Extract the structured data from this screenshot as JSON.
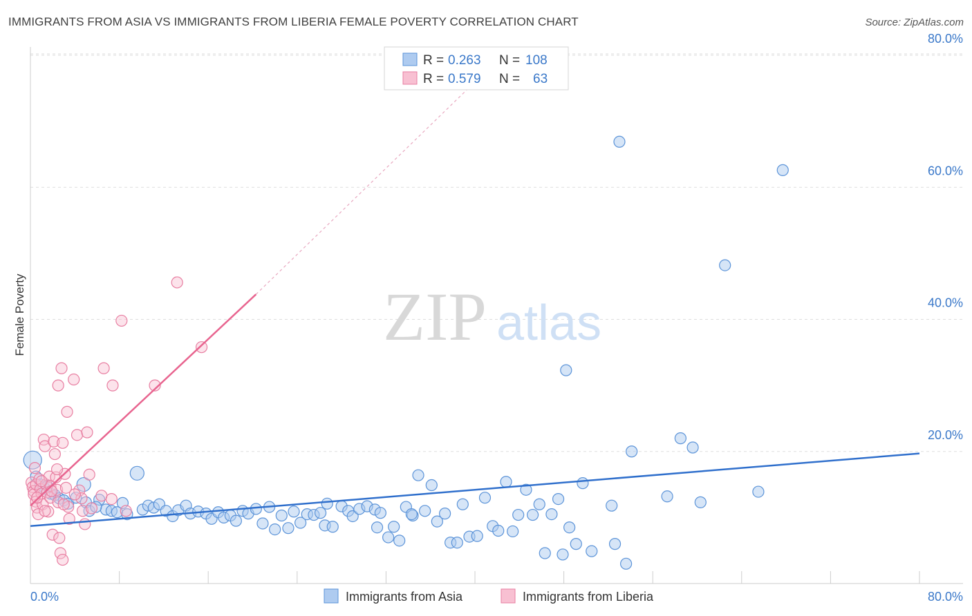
{
  "title": "IMMIGRANTS FROM ASIA VS IMMIGRANTS FROM LIBERIA FEMALE POVERTY CORRELATION CHART",
  "source": "Source: ZipAtlas.com",
  "watermark": {
    "zip": "ZIP",
    "atlas": "atlas"
  },
  "colors": {
    "asia_fill": "#aecbf0",
    "asia_stroke": "#5b93d8",
    "asia_line": "#2f6fcc",
    "liberia_fill": "#f8c0d2",
    "liberia_stroke": "#e87ea1",
    "liberia_line": "#e8648f",
    "grid": "#dddddd",
    "tick_label": "#3a78c9"
  },
  "legend": {
    "rows": [
      {
        "r_label": "R =",
        "r_value": "0.263",
        "n_label": "N =",
        "n_value": "108"
      },
      {
        "r_label": "R =",
        "r_value": "0.579",
        "n_label": "N =",
        "n_value": "63"
      }
    ]
  },
  "chart_data": {
    "type": "scatter",
    "title": "IMMIGRANTS FROM ASIA VS IMMIGRANTS FROM LIBERIA FEMALE POVERTY CORRELATION CHART",
    "xlabel": "",
    "ylabel": "Female Poverty",
    "xlim": [
      0,
      80
    ],
    "ylim": [
      0,
      80
    ],
    "x_tick_labels": [
      "0.0%",
      "80.0%"
    ],
    "y_tick_labels": [
      "20.0%",
      "40.0%",
      "60.0%",
      "80.0%"
    ],
    "y_ticks": [
      20,
      40,
      60,
      80
    ],
    "grid": true,
    "legend_position": "top-center",
    "series": [
      {
        "name": "Immigrants from Asia",
        "R": 0.263,
        "N": 108,
        "trend": {
          "x0": 0,
          "y0": 8.7,
          "x1": 80,
          "y1": 19.7
        },
        "points": [
          [
            0.2,
            18.7
          ],
          [
            0.5,
            16.2
          ],
          [
            0.9,
            15.0
          ],
          [
            1.2,
            14.6
          ],
          [
            1.5,
            14.8
          ],
          [
            1.8,
            13.6
          ],
          [
            2.2,
            13.4
          ],
          [
            2.6,
            12.9
          ],
          [
            3.0,
            12.6
          ],
          [
            3.4,
            12.1
          ],
          [
            4.1,
            13.0
          ],
          [
            4.8,
            15.0
          ],
          [
            5.0,
            12.3
          ],
          [
            5.3,
            11.0
          ],
          [
            6.2,
            12.7
          ],
          [
            6.8,
            11.2
          ],
          [
            7.3,
            11.0
          ],
          [
            7.8,
            10.8
          ],
          [
            8.3,
            12.2
          ],
          [
            8.7,
            10.5
          ],
          [
            9.6,
            16.7
          ],
          [
            10.1,
            11.2
          ],
          [
            10.6,
            11.8
          ],
          [
            11.1,
            11.5
          ],
          [
            11.6,
            12.0
          ],
          [
            12.2,
            11.0
          ],
          [
            12.8,
            10.2
          ],
          [
            13.3,
            11.1
          ],
          [
            14.0,
            11.8
          ],
          [
            14.4,
            10.6
          ],
          [
            15.1,
            10.9
          ],
          [
            15.8,
            10.6
          ],
          [
            16.3,
            9.8
          ],
          [
            16.9,
            10.8
          ],
          [
            17.4,
            10.0
          ],
          [
            18.0,
            10.3
          ],
          [
            18.5,
            9.5
          ],
          [
            19.1,
            11.0
          ],
          [
            19.6,
            10.6
          ],
          [
            20.3,
            11.3
          ],
          [
            20.9,
            9.1
          ],
          [
            21.5,
            11.6
          ],
          [
            22.0,
            8.2
          ],
          [
            22.6,
            10.3
          ],
          [
            23.2,
            8.4
          ],
          [
            23.7,
            10.9
          ],
          [
            24.3,
            9.2
          ],
          [
            24.9,
            10.5
          ],
          [
            25.5,
            10.4
          ],
          [
            26.1,
            10.7
          ],
          [
            26.5,
            8.8
          ],
          [
            27.2,
            8.6
          ],
          [
            28.0,
            11.7
          ],
          [
            28.6,
            11.0
          ],
          [
            29.0,
            10.2
          ],
          [
            29.6,
            11.3
          ],
          [
            30.3,
            11.7
          ],
          [
            31.0,
            11.2
          ],
          [
            31.5,
            10.7
          ],
          [
            31.2,
            8.5
          ],
          [
            32.2,
            7.0
          ],
          [
            32.7,
            8.6
          ],
          [
            33.2,
            6.5
          ],
          [
            33.8,
            11.6
          ],
          [
            34.4,
            10.3
          ],
          [
            34.9,
            16.4
          ],
          [
            35.5,
            11.0
          ],
          [
            36.1,
            14.9
          ],
          [
            36.6,
            9.4
          ],
          [
            37.3,
            10.6
          ],
          [
            37.8,
            6.2
          ],
          [
            38.4,
            6.2
          ],
          [
            38.9,
            12.0
          ],
          [
            39.5,
            7.1
          ],
          [
            40.2,
            7.2
          ],
          [
            40.9,
            13.0
          ],
          [
            41.6,
            8.7
          ],
          [
            42.1,
            8.0
          ],
          [
            42.8,
            15.4
          ],
          [
            43.4,
            7.9
          ],
          [
            43.9,
            10.4
          ],
          [
            44.6,
            14.2
          ],
          [
            45.2,
            10.4
          ],
          [
            45.8,
            12.0
          ],
          [
            46.3,
            4.6
          ],
          [
            46.9,
            10.5
          ],
          [
            47.5,
            12.8
          ],
          [
            47.9,
            4.4
          ],
          [
            48.5,
            8.5
          ],
          [
            49.1,
            6.0
          ],
          [
            49.7,
            15.2
          ],
          [
            50.5,
            4.9
          ],
          [
            52.3,
            11.8
          ],
          [
            52.6,
            6.0
          ],
          [
            53.0,
            66.9
          ],
          [
            53.6,
            3.0
          ],
          [
            54.1,
            20.0
          ],
          [
            57.3,
            13.2
          ],
          [
            58.5,
            22.0
          ],
          [
            59.6,
            20.6
          ],
          [
            60.3,
            12.3
          ],
          [
            62.5,
            48.2
          ],
          [
            48.2,
            32.3
          ],
          [
            65.5,
            13.9
          ],
          [
            67.7,
            62.6
          ],
          [
            34.3,
            10.5
          ],
          [
            26.7,
            12.1
          ],
          [
            5.9,
            11.6
          ]
        ]
      },
      {
        "name": "Immigrants from Liberia",
        "R": 0.579,
        "N": 63,
        "trend": {
          "x0": 0,
          "y0": 11.8,
          "x1": 20.3,
          "y1": 43.8,
          "dash_x1": 39.6,
          "dash_y1": 75.3
        },
        "points": [
          [
            0.1,
            15.3
          ],
          [
            0.2,
            14.6
          ],
          [
            0.3,
            14.0
          ],
          [
            0.3,
            13.5
          ],
          [
            0.4,
            17.5
          ],
          [
            0.5,
            15.0
          ],
          [
            0.5,
            12.4
          ],
          [
            0.6,
            11.5
          ],
          [
            0.7,
            10.5
          ],
          [
            0.8,
            15.8
          ],
          [
            0.9,
            14.3
          ],
          [
            1.0,
            13.6
          ],
          [
            1.1,
            12.0
          ],
          [
            1.2,
            21.8
          ],
          [
            1.3,
            20.8
          ],
          [
            1.4,
            15.0
          ],
          [
            1.5,
            13.8
          ],
          [
            1.6,
            10.9
          ],
          [
            1.7,
            16.2
          ],
          [
            1.8,
            14.8
          ],
          [
            1.8,
            13.0
          ],
          [
            2.0,
            7.4
          ],
          [
            2.1,
            21.5
          ],
          [
            2.2,
            19.6
          ],
          [
            2.3,
            16.1
          ],
          [
            2.4,
            14.2
          ],
          [
            2.5,
            12.3
          ],
          [
            2.6,
            6.9
          ],
          [
            2.7,
            4.6
          ],
          [
            2.9,
            3.6
          ],
          [
            2.8,
            32.6
          ],
          [
            2.5,
            30.0
          ],
          [
            2.9,
            21.3
          ],
          [
            3.1,
            16.6
          ],
          [
            3.2,
            14.5
          ],
          [
            3.4,
            11.6
          ],
          [
            3.5,
            9.8
          ],
          [
            3.3,
            26.0
          ],
          [
            3.9,
            30.9
          ],
          [
            4.2,
            22.5
          ],
          [
            4.4,
            14.1
          ],
          [
            4.6,
            12.9
          ],
          [
            4.7,
            11.0
          ],
          [
            4.9,
            9.0
          ],
          [
            5.1,
            22.9
          ],
          [
            5.3,
            16.5
          ],
          [
            5.5,
            11.4
          ],
          [
            6.4,
            13.3
          ],
          [
            6.6,
            32.6
          ],
          [
            7.3,
            12.8
          ],
          [
            7.4,
            30.0
          ],
          [
            8.2,
            39.8
          ],
          [
            8.6,
            11.0
          ],
          [
            11.2,
            30.0
          ],
          [
            13.2,
            45.6
          ],
          [
            15.4,
            35.8
          ],
          [
            1.0,
            15.5
          ],
          [
            1.9,
            14.0
          ],
          [
            0.6,
            13.0
          ],
          [
            3.0,
            12.0
          ],
          [
            1.3,
            11.0
          ],
          [
            4.0,
            13.5
          ],
          [
            2.4,
            17.3
          ]
        ]
      }
    ]
  },
  "bottom_legend": [
    {
      "label": "Immigrants from Asia"
    },
    {
      "label": "Immigrants from Liberia"
    }
  ]
}
